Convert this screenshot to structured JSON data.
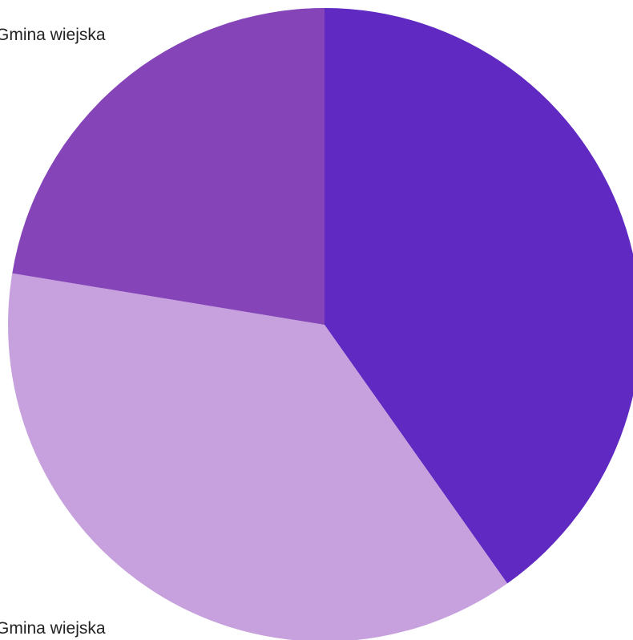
{
  "chart_data": {
    "type": "pie",
    "title": "",
    "start_angle_deg": 0,
    "direction": "clockwise",
    "legend": "none",
    "slices": [
      {
        "label": "",
        "value": 40.2,
        "color": "#5f29c2"
      },
      {
        "label": "Gmina wiejska",
        "value": 37.4,
        "color": "#c6a1de"
      },
      {
        "label": "Gmina wiejska",
        "value": 22.4,
        "color": "#8644b9"
      }
    ]
  }
}
